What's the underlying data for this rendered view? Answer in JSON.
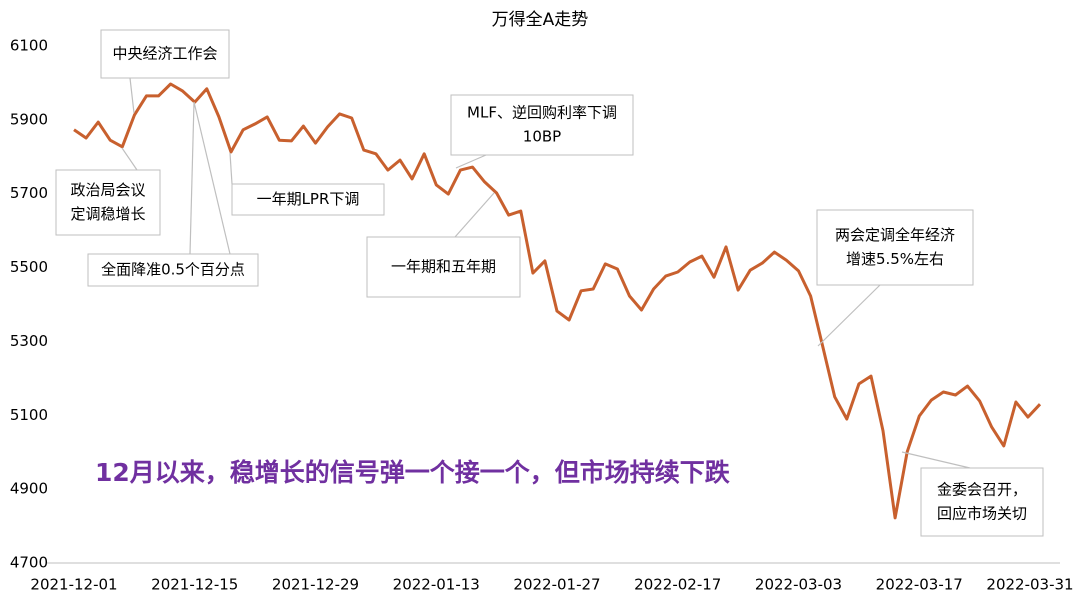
{
  "chart_data": {
    "type": "line",
    "title": "万得全A走势",
    "headline": "12月以来，稳增长的信号弹一个接一个，但市场持续下跌",
    "categories": [
      "2021-12-01",
      null,
      null,
      null,
      null,
      null,
      null,
      null,
      null,
      null,
      "2021-12-15",
      null,
      null,
      null,
      null,
      null,
      null,
      null,
      null,
      null,
      "2021-12-29",
      null,
      null,
      null,
      null,
      null,
      null,
      null,
      null,
      null,
      "2022-01-13",
      null,
      null,
      null,
      null,
      null,
      null,
      null,
      null,
      null,
      "2022-01-27",
      null,
      null,
      null,
      null,
      null,
      null,
      null,
      null,
      null,
      "2022-02-17",
      null,
      null,
      null,
      null,
      null,
      null,
      null,
      null,
      null,
      "2022-03-03",
      null,
      null,
      null,
      null,
      null,
      null,
      null,
      null,
      null,
      "2022-03-17",
      null,
      null,
      null,
      null,
      null,
      null,
      null,
      null,
      null,
      "2022-03-31"
    ],
    "series": [
      {
        "name": "万得全A",
        "color": "#c8602e",
        "values": [
          5873,
          5851,
          5894,
          5845,
          5827,
          5913,
          5965,
          5965,
          5997,
          5978,
          5948,
          5984,
          5908,
          5813,
          5873,
          5889,
          5908,
          5845,
          5843,
          5883,
          5837,
          5881,
          5916,
          5905,
          5818,
          5808,
          5764,
          5791,
          5740,
          5808,
          5724,
          5699,
          5764,
          5772,
          5732,
          5702,
          5642,
          5653,
          5485,
          5518,
          5382,
          5358,
          5437,
          5442,
          5510,
          5496,
          5423,
          5385,
          5442,
          5477,
          5488,
          5515,
          5531,
          5474,
          5556,
          5439,
          5493,
          5512,
          5542,
          5520,
          5491,
          5423,
          5288,
          5150,
          5090,
          5185,
          5206,
          5058,
          4822,
          5001,
          5098,
          5141,
          5163,
          5155,
          5179,
          5139,
          5068,
          5017,
          5136,
          5095,
          5130
        ]
      }
    ],
    "ylim": [
      4700,
      6100
    ],
    "yticks": [
      4700,
      4900,
      5100,
      5300,
      5500,
      5700,
      5900,
      6100
    ],
    "grid": false,
    "annotations": [
      {
        "lines": [
          "中央经济工作会"
        ]
      },
      {
        "lines": [
          "政治局会议",
          "定调稳增长"
        ]
      },
      {
        "lines": [
          "全面降准0.5个百分点"
        ]
      },
      {
        "lines": [
          "一年期LPR下调"
        ]
      },
      {
        "lines": [
          "MLF、逆回购利率下调",
          "10BP"
        ]
      },
      {
        "lines": [
          "一年期和五年期"
        ]
      },
      {
        "lines": [
          "两会定调全年经济",
          "增速5.5%左右"
        ]
      },
      {
        "lines": [
          "金委会召开，",
          "回应市场关切"
        ]
      }
    ]
  }
}
